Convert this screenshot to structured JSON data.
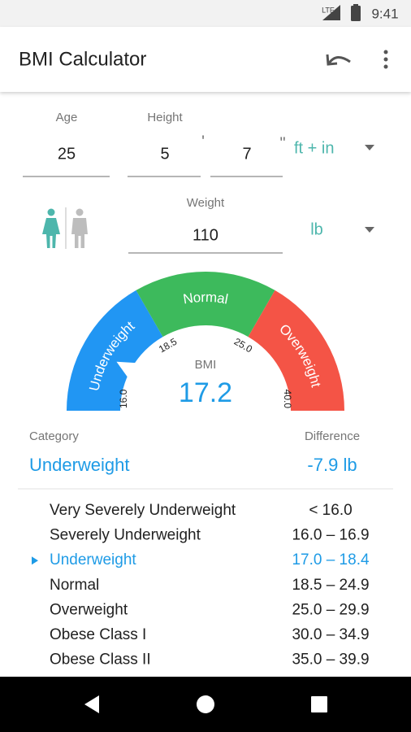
{
  "status_bar": {
    "network": "LTE",
    "time": "9:41"
  },
  "app_bar": {
    "title": "BMI Calculator"
  },
  "inputs": {
    "age": {
      "label": "Age",
      "value": "25"
    },
    "height": {
      "label": "Height",
      "feet": "5",
      "feet_mark": "'",
      "inches": "7",
      "inches_mark": "\"",
      "unit": "ft + in"
    },
    "weight": {
      "label": "Weight",
      "value": "110",
      "unit": "lb"
    }
  },
  "gauge": {
    "segments": [
      {
        "label": "Underweight",
        "color": "#2196f3"
      },
      {
        "label": "Normal",
        "color": "#3dba5c"
      },
      {
        "label": "Overweight",
        "color": "#f45446"
      }
    ],
    "ticks": [
      {
        "value": 16,
        "label": "16.0"
      },
      18.5,
      {
        "value": 25,
        "label": "25.0"
      },
      {
        "value": 40,
        "label": "40.0"
      }
    ],
    "label": "BMI",
    "value": 17.2
  },
  "result": {
    "category_label": "Category",
    "category": "Underweight",
    "difference_label": "Difference",
    "difference": "-7.9 lb"
  },
  "table": {
    "selected_row": 2,
    "rows": [
      [
        "Very Severely Underweight",
        "< 16.0"
      ],
      [
        "Severely Underweight",
        "16.0 – 16.9"
      ],
      [
        "Underweight",
        "17.0 – 18.4"
      ],
      [
        "Normal",
        "18.5 – 24.9"
      ],
      [
        "Overweight",
        "25.0 – 29.9"
      ],
      [
        "Obese Class I",
        "30.0 – 34.9"
      ],
      [
        "Obese Class II",
        "35.0 – 39.9"
      ]
    ]
  }
}
